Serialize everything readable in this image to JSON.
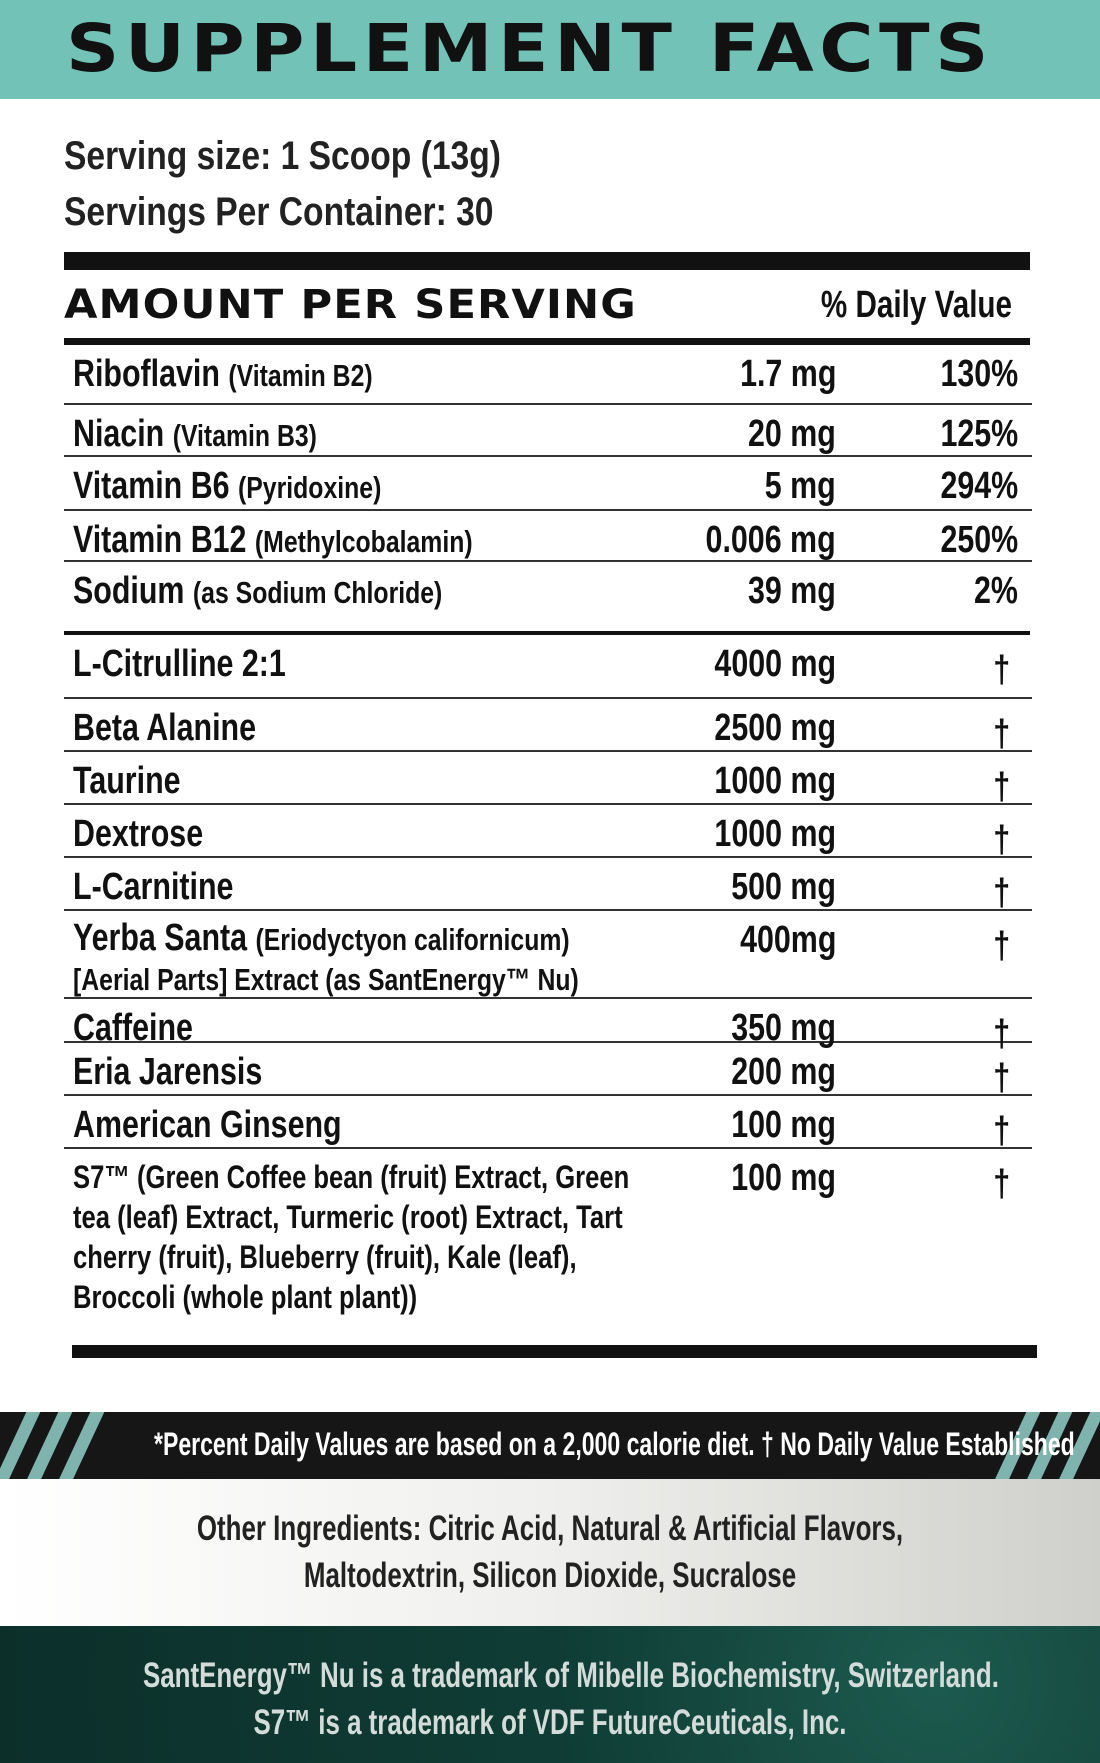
{
  "header": {
    "title": "SUPPLEMENT FACTS",
    "bg_color": "#72c2b8"
  },
  "serving": {
    "size": "Serving size: 1 Scoop (13g)",
    "per_container": "Servings Per Container: 30"
  },
  "table_header": {
    "amount": "AMOUNT PER SERVING",
    "dv": "% Daily Value"
  },
  "vitamins": [
    {
      "name": "Riboflavin",
      "sub": "(Vitamin B2)",
      "amount": "1.7 mg",
      "dv": "130%"
    },
    {
      "name": "Niacin",
      "sub": "(Vitamin B3)",
      "amount": "20 mg",
      "dv": "125%"
    },
    {
      "name": "Vitamin B6",
      "sub": "(Pyridoxine)",
      "amount": "5 mg",
      "dv": "294%"
    },
    {
      "name": "Vitamin B12",
      "sub": "(Methylcobalamin)",
      "amount": "0.006 mg",
      "dv": "250%"
    },
    {
      "name": "Sodium",
      "sub": "(as Sodium Chloride)",
      "amount": "39 mg",
      "dv": "2%"
    }
  ],
  "ingredients": [
    {
      "name": "L-Citrulline 2:1",
      "amount": "4000 mg",
      "dv": "†"
    },
    {
      "name": "Beta Alanine",
      "amount": "2500 mg",
      "dv": "†"
    },
    {
      "name": "Taurine",
      "amount": "1000 mg",
      "dv": "†"
    },
    {
      "name": "Dextrose",
      "amount": "1000 mg",
      "dv": "†"
    },
    {
      "name": "L-Carnitine",
      "amount": "500 mg",
      "dv": "†"
    },
    {
      "name": "Yerba Santa",
      "sub": "(Eriodyctyon californicum)",
      "line2": "[Aerial Parts] Extract (as SantEnergy™ Nu)",
      "amount": "400mg",
      "dv": "†"
    },
    {
      "name": "Caffeine",
      "amount": "350 mg",
      "dv": "†"
    },
    {
      "name": "Eria Jarensis",
      "amount": "200 mg",
      "dv": "†"
    },
    {
      "name": "American Ginseng",
      "amount": "100 mg",
      "dv": "†"
    },
    {
      "name": "S7™ (Green Coffee bean (fruit) Extract, Green tea (leaf) Extract, Turmeric (root) Extract, Tart cherry (fruit), Blueberry (fruit), Kale (leaf), Broccoli (whole plant plant))",
      "amount": "100 mg",
      "dv": "†"
    }
  ],
  "footnote": "*Percent Daily Values are based on a 2,000 calorie diet. † No Daily Value Established",
  "other_ingredients": {
    "line1": "Other Ingredients: Citric Acid, Natural & Artificial Flavors,",
    "line2": "Maltodextrin, Silicon Dioxide, Sucralose"
  },
  "trademarks": {
    "line1": "SantEnergy™ Nu is a trademark of Mibelle Biochemistry, Switzerland.",
    "line2": "S7™ is a trademark of VDF FutureCeuticals, Inc."
  }
}
